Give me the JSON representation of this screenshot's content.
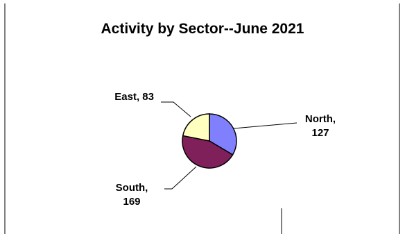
{
  "chart_data": {
    "type": "pie",
    "title": "Activity by Sector--June 2021",
    "categories": [
      "North",
      "South",
      "East"
    ],
    "values": [
      127,
      169,
      83
    ],
    "colors": [
      "#8080FF",
      "#80205A",
      "#FFFFC0"
    ],
    "data_labels": [
      [
        "North,",
        "127"
      ],
      [
        "South,",
        "169"
      ],
      [
        "East, 83"
      ]
    ],
    "legend": "none"
  }
}
